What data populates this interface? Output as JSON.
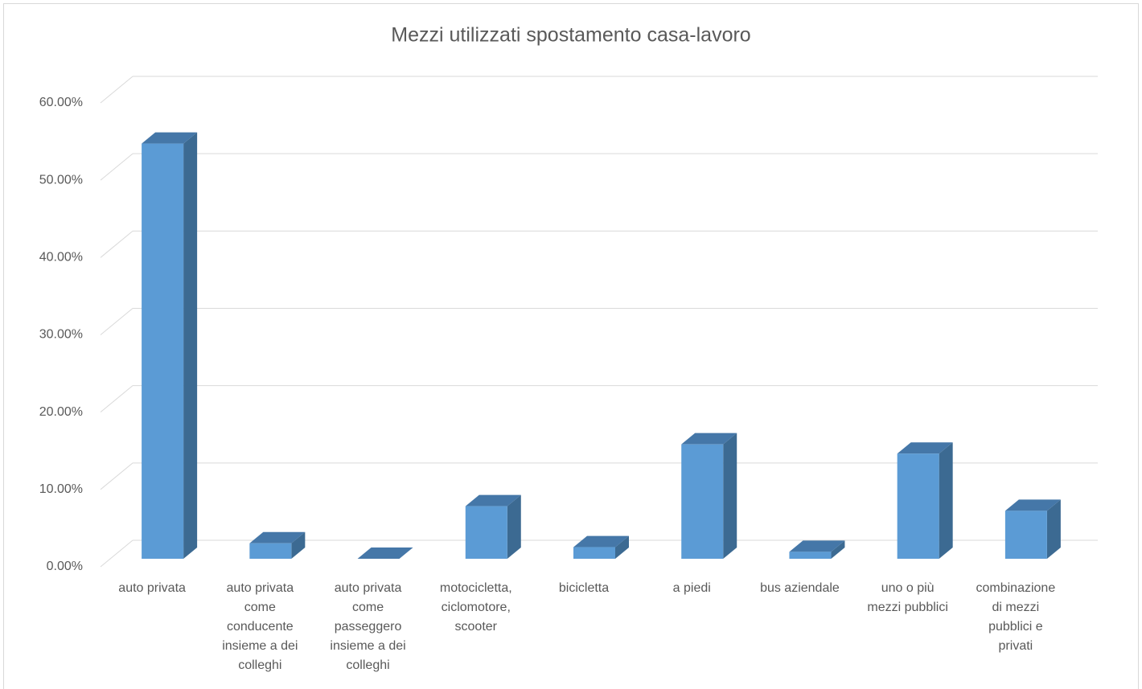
{
  "chart_data": {
    "type": "bar3d",
    "title": "Mezzi utilizzati spostamento casa-lavoro",
    "categories": [
      "auto privata",
      "auto privata come conducente insieme a dei colleghi",
      "auto privata come passeggero insieme a dei colleghi",
      "motocicletta, ciclomotore, scooter",
      "bicicletta",
      "a piedi",
      "bus aziendale",
      "uno o più mezzi pubblici",
      "combinazione di mezzi pubblici e privati"
    ],
    "values": [
      53.7,
      2.0,
      0,
      6.8,
      1.5,
      14.8,
      0.9,
      13.6,
      6.2
    ],
    "color": "#5b9bd5",
    "ylim": [
      0,
      60
    ],
    "yticks": [
      {
        "value": 0,
        "label": "0.00%"
      },
      {
        "value": 10,
        "label": "10.00%"
      },
      {
        "value": 20,
        "label": "20.00%"
      },
      {
        "value": 30,
        "label": "30.00%"
      },
      {
        "value": 40,
        "label": "40.00%"
      },
      {
        "value": 50,
        "label": "50.00%"
      },
      {
        "value": 60,
        "label": "60.00%"
      }
    ],
    "grid": true
  }
}
